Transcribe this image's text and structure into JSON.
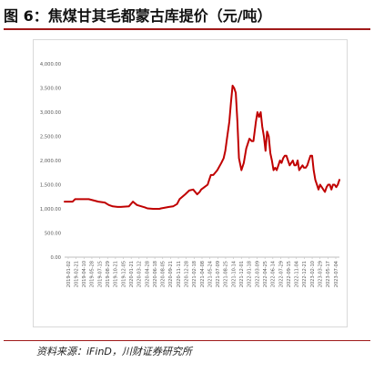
{
  "figure": {
    "title": "图 6：焦煤甘其毛都蒙古库提价（元/吨）",
    "source": "资料来源：iFinD，川财证券研究所"
  },
  "colors": {
    "line": "#c00000",
    "accent": "#a01a1a",
    "tick": "#595959",
    "axis": "#bfbfbf"
  },
  "chart_data": {
    "type": "line",
    "title": "",
    "xlabel": "",
    "ylabel": "",
    "ylim": [
      0,
      4000
    ],
    "yticks": [
      "0.00",
      "500.00",
      "1,000.00",
      "1,500.00",
      "2,000.00",
      "2,500.00",
      "3,000.00",
      "3,500.00",
      "4,000.00"
    ],
    "grid": false,
    "legend": "none",
    "xticks": [
      "2019-01-02",
      "2019-02-21",
      "2019-04-10",
      "2019-05-28",
      "2019-07-15",
      "2019-08-29",
      "2019-10-21",
      "2019-12-05",
      "2020-01-21",
      "2020-03-12",
      "2020-04-28",
      "2020-06-18",
      "2020-08-05",
      "2020-09-21",
      "2020-11-11",
      "2020-12-28",
      "2021-02-18",
      "2021-04-08",
      "2021-05-24",
      "2021-07-09",
      "2021-08-25",
      "2021-10-14",
      "2021-12-01",
      "2022-01-18",
      "2022-03-09",
      "2022-04-25",
      "2022-06-14",
      "2022-07-29",
      "2022-09-15",
      "2022-11-04",
      "2022-12-21",
      "2023-02-10",
      "2023-03-29",
      "2023-05-17",
      "2023-07-04"
    ],
    "series": [
      {
        "name": "",
        "x": [
          0,
          1,
          1.3,
          2,
          3,
          3.5,
          4.2,
          5,
          5.5,
          6,
          6.6,
          7,
          8,
          8.5,
          9,
          10,
          10.3,
          11,
          11.8,
          12,
          13,
          13.5,
          14,
          14.3,
          15,
          15.5,
          16,
          16.5,
          16.8,
          17,
          17.4,
          17.8,
          18,
          18.2,
          18.5,
          19,
          19.5,
          19.8,
          20,
          20.2,
          20.5,
          20.7,
          20.9,
          21.1,
          21.3,
          21.5,
          21.7,
          22,
          22.3,
          22.6,
          23,
          23.3,
          23.5,
          23.8,
          24,
          24.2,
          24.4,
          24.6,
          24.8,
          25,
          25.2,
          25.4,
          25.6,
          25.8,
          26,
          26.2,
          26.4,
          26.6,
          26.8,
          27,
          27.2,
          27.4,
          27.6,
          27.8,
          28,
          28.2,
          28.4,
          28.6,
          28.8,
          29,
          29.2,
          29.4,
          29.6,
          29.8,
          30,
          30.2,
          30.4,
          30.6,
          30.8,
          31,
          31.2,
          31.4,
          31.6,
          31.8,
          32,
          32.2,
          32.4,
          32.6,
          32.8,
          33,
          33.2,
          33.4,
          33.6,
          33.8,
          34,
          34.2
        ],
        "values": [
          1150,
          1150,
          1200,
          1200,
          1200,
          1180,
          1150,
          1130,
          1080,
          1050,
          1040,
          1040,
          1050,
          1150,
          1080,
          1030,
          1010,
          1000,
          1000,
          1010,
          1040,
          1050,
          1100,
          1200,
          1300,
          1380,
          1400,
          1300,
          1350,
          1400,
          1450,
          1500,
          1600,
          1700,
          1700,
          1800,
          1950,
          2050,
          2200,
          2450,
          2800,
          3200,
          3550,
          3500,
          3400,
          2800,
          2050,
          1800,
          1950,
          2250,
          2450,
          2400,
          2400,
          2800,
          3000,
          2900,
          3000,
          2700,
          2500,
          2200,
          2600,
          2500,
          2150,
          2000,
          1800,
          1850,
          1800,
          1900,
          2000,
          1950,
          2050,
          2100,
          2100,
          2000,
          1900,
          1950,
          2000,
          1900,
          1900,
          2000,
          1800,
          1850,
          1900,
          1850,
          1850,
          1900,
          2000,
          2100,
          2100,
          1800,
          1600,
          1500,
          1400,
          1500,
          1450,
          1400,
          1350,
          1450,
          1500,
          1500,
          1400,
          1500,
          1500,
          1450,
          1500,
          1600
        ]
      }
    ],
    "xrange": [
      0,
      34.2
    ]
  }
}
